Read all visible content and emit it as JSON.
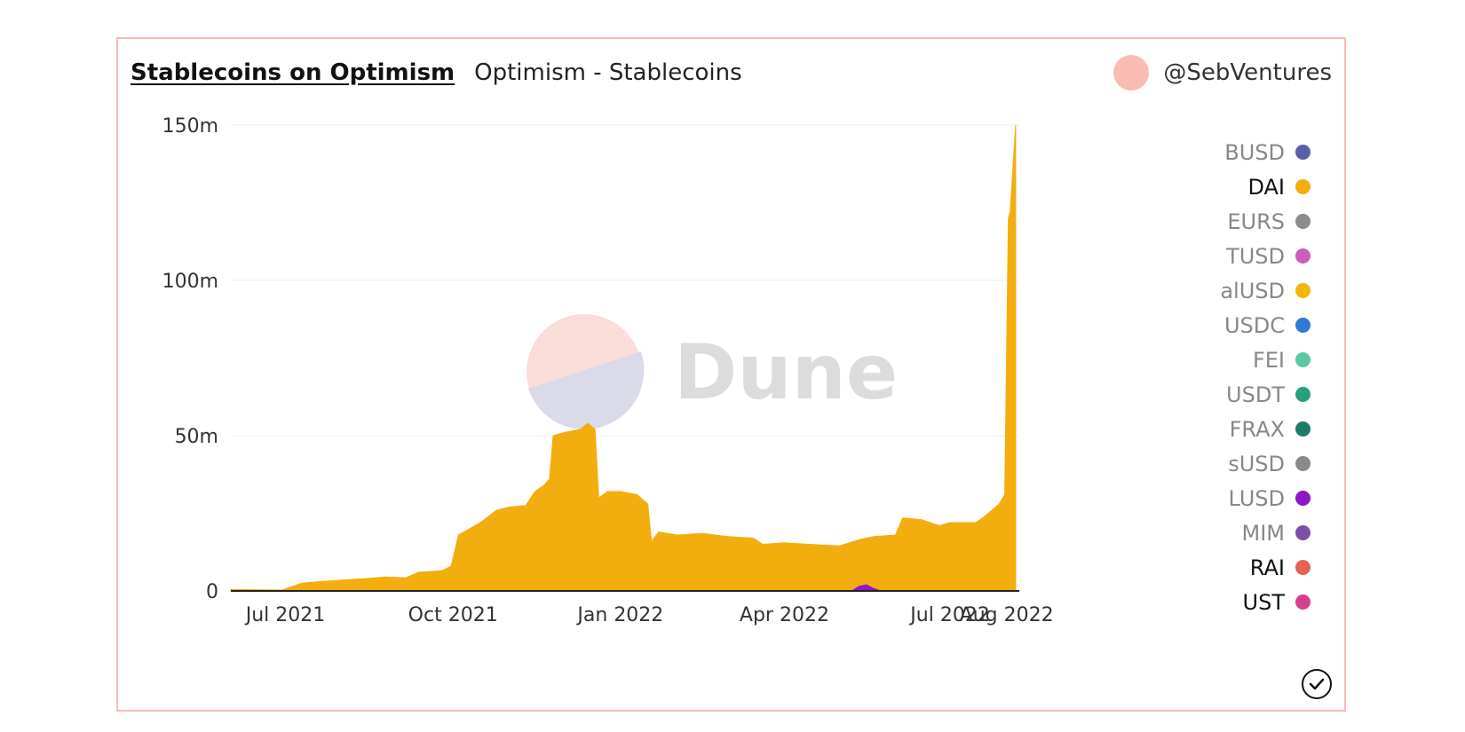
{
  "header": {
    "title": "Stablecoins on Optimism",
    "subtitle": "Optimism - Stablecoins",
    "author": "@SebVentures"
  },
  "watermark": {
    "text": "Dune"
  },
  "colors": {
    "accent": "#f2ae0e",
    "border": "#f6bcb5"
  },
  "legend": [
    {
      "label": "BUSD",
      "color": "#5b5ea6",
      "active": false
    },
    {
      "label": "DAI",
      "color": "#f2ae0e",
      "active": true
    },
    {
      "label": "EURS",
      "color": "#8c8c8c",
      "active": false
    },
    {
      "label": "TUSD",
      "color": "#cd5fb8",
      "active": false
    },
    {
      "label": "alUSD",
      "color": "#f2b705",
      "active": false
    },
    {
      "label": "USDC",
      "color": "#2f7ad6",
      "active": false
    },
    {
      "label": "FEI",
      "color": "#5cc7a5",
      "active": false
    },
    {
      "label": "USDT",
      "color": "#26a17b",
      "active": false
    },
    {
      "label": "FRAX",
      "color": "#1f7a6a",
      "active": false
    },
    {
      "label": "sUSD",
      "color": "#8a8a8a",
      "active": false
    },
    {
      "label": "LUSD",
      "color": "#8e17c7",
      "active": false
    },
    {
      "label": "MIM",
      "color": "#7b4fa8",
      "active": false
    },
    {
      "label": "RAI",
      "color": "#e8604f",
      "active": true
    },
    {
      "label": "UST",
      "color": "#d63f8c",
      "active": true
    }
  ],
  "chart_data": {
    "type": "area",
    "stacked": true,
    "y_ticks": [
      {
        "value": 0,
        "label": "0"
      },
      {
        "value": 50,
        "label": "50m"
      },
      {
        "value": 100,
        "label": "100m"
      },
      {
        "value": 150,
        "label": "150m"
      }
    ],
    "ylim": [
      0,
      150
    ],
    "y_unit": "million USD",
    "x_ticks": [
      {
        "date": "2021-07-01",
        "label": "Jul 2021"
      },
      {
        "date": "2021-10-01",
        "label": "Oct 2021"
      },
      {
        "date": "2022-01-01",
        "label": "Jan 2022"
      },
      {
        "date": "2022-04-01",
        "label": "Apr 2022"
      },
      {
        "date": "2022-07-01",
        "label": "Jul 2022"
      },
      {
        "date": "2022-08-01",
        "label": "Aug 2022"
      }
    ],
    "xlim": [
      "2021-06-01",
      "2022-08-08"
    ],
    "grid": true,
    "legend_position": "right",
    "series": [
      {
        "name": "DAI",
        "color": "#f2ae0e",
        "points": [
          [
            "2021-06-01",
            0.5
          ],
          [
            "2021-06-29",
            0.3
          ],
          [
            "2021-07-05",
            1.5
          ],
          [
            "2021-07-10",
            2.5
          ],
          [
            "2021-07-20",
            3
          ],
          [
            "2021-08-01",
            3.5
          ],
          [
            "2021-08-15",
            4
          ],
          [
            "2021-08-25",
            4.5
          ],
          [
            "2021-09-05",
            4.2
          ],
          [
            "2021-09-12",
            6
          ],
          [
            "2021-09-25",
            6.5
          ],
          [
            "2021-09-30",
            8
          ],
          [
            "2021-10-04",
            18
          ],
          [
            "2021-10-10",
            20
          ],
          [
            "2021-10-16",
            22
          ],
          [
            "2021-10-25",
            26
          ],
          [
            "2021-11-01",
            27
          ],
          [
            "2021-11-10",
            27.5
          ],
          [
            "2021-11-15",
            32
          ],
          [
            "2021-11-20",
            34
          ],
          [
            "2021-11-23",
            36
          ],
          [
            "2021-11-25",
            50
          ],
          [
            "2021-12-01",
            51
          ],
          [
            "2021-12-10",
            52
          ],
          [
            "2021-12-14",
            54
          ],
          [
            "2021-12-18",
            52
          ],
          [
            "2021-12-20",
            30
          ],
          [
            "2021-12-25",
            32
          ],
          [
            "2022-01-01",
            32
          ],
          [
            "2022-01-10",
            31
          ],
          [
            "2022-01-16",
            28
          ],
          [
            "2022-01-18",
            16
          ],
          [
            "2022-01-22",
            19
          ],
          [
            "2022-02-01",
            18
          ],
          [
            "2022-02-15",
            18.5
          ],
          [
            "2022-03-01",
            17.5
          ],
          [
            "2022-03-15",
            17
          ],
          [
            "2022-03-20",
            15
          ],
          [
            "2022-04-01",
            15.5
          ],
          [
            "2022-04-15",
            15
          ],
          [
            "2022-05-01",
            14.5
          ],
          [
            "2022-05-12",
            16.5
          ],
          [
            "2022-05-20",
            17.5
          ],
          [
            "2022-06-01",
            18
          ],
          [
            "2022-06-05",
            23.5
          ],
          [
            "2022-06-15",
            23
          ],
          [
            "2022-06-25",
            21
          ],
          [
            "2022-07-01",
            22
          ],
          [
            "2022-07-15",
            22
          ],
          [
            "2022-07-20",
            24
          ],
          [
            "2022-07-28",
            28
          ],
          [
            "2022-07-31",
            31
          ],
          [
            "2022-08-02",
            120
          ],
          [
            "2022-08-03",
            122
          ],
          [
            "2022-08-06",
            150
          ]
        ]
      },
      {
        "name": "LUSD",
        "color": "#8e17c7",
        "points": [
          [
            "2022-05-08",
            0
          ],
          [
            "2022-05-12",
            1.5
          ],
          [
            "2022-05-16",
            2
          ],
          [
            "2022-05-20",
            0.8
          ],
          [
            "2022-05-24",
            0
          ]
        ]
      }
    ]
  }
}
